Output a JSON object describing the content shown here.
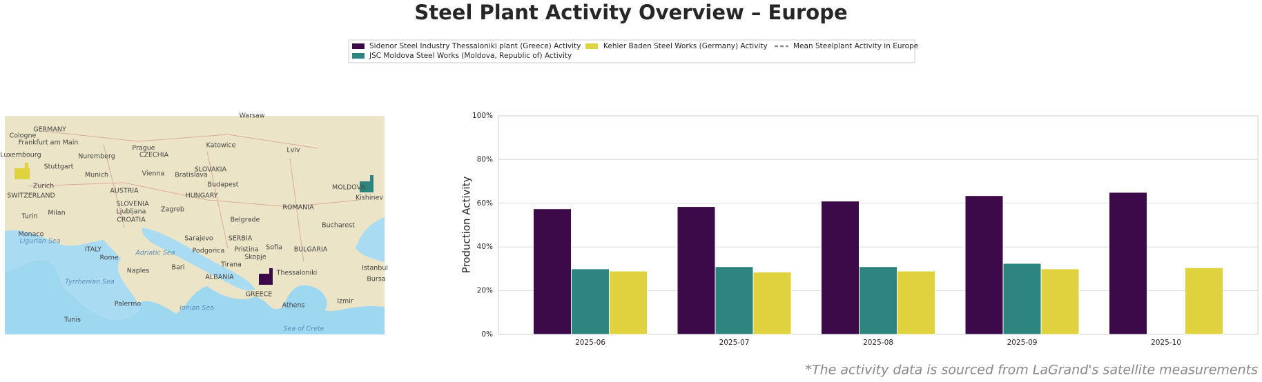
{
  "chart_data": {
    "type": "bar",
    "title": "Steel Plant Activity Overview – Europe",
    "ylabel": "Production Activity",
    "footnote": "*The activity data is sourced from LaGrand's satellite measurements",
    "categories": [
      "2025-06",
      "2025-07",
      "2025-08",
      "2025-09",
      "2025-10"
    ],
    "series": [
      {
        "name": "Sidenor Steel Industry Thessaloniki plant (Greece) Activity",
        "color": "#3c0a48",
        "values": [
          57.5,
          58.5,
          61,
          63.5,
          65
        ]
      },
      {
        "name": "JSC Moldova Steel Works (Moldova, Republic of) Activity",
        "color": "#2e8580",
        "values": [
          30,
          31,
          31,
          32.5,
          null
        ]
      },
      {
        "name": "Kehler Baden Steel Works (Germany) Activity",
        "color": "#e0d23e",
        "values": [
          29,
          28.5,
          29,
          30,
          30.5
        ]
      }
    ],
    "reference_line": {
      "name": "Mean Steelplant Activity in Europe",
      "color": "#888888"
    },
    "ylim": [
      0,
      100
    ],
    "yticks": [
      {
        "value": 0,
        "label": "0%"
      },
      {
        "value": 20,
        "label": "20%"
      },
      {
        "value": 40,
        "label": "40%"
      },
      {
        "value": 60,
        "label": "60%"
      },
      {
        "value": 80,
        "label": "80%"
      },
      {
        "value": 100,
        "label": "100%"
      }
    ],
    "grid": true,
    "map_labels": [
      "GERMANY",
      "Frankfurt am Main",
      "Cologne",
      "Luxembourg",
      "Nuremberg",
      "Stuttgart",
      "Munich",
      "Prague",
      "CZECHIA",
      "Katowice",
      "Warsaw",
      "Lviv",
      "Vienna",
      "Bratislava",
      "SLOVAKIA",
      "Budapest",
      "HUNGARY",
      "AUSTRIA",
      "Zurich",
      "SWITZERLAND",
      "Milan",
      "Turin",
      "Ljubljana",
      "Zagreb",
      "SLOVENIA",
      "CROATIA",
      "Belgrade",
      "ROMANIA",
      "Bucharest",
      "MOLDOVA",
      "Kishinev",
      "Monaco",
      "Ligurian Sea",
      "ITALY",
      "Rome",
      "Adriatic Sea",
      "Sarajevo",
      "Podgorica",
      "SERBIA",
      "Pristina",
      "Sofia",
      "BULGARIA",
      "Skopje",
      "Tirana",
      "ALBANIA",
      "Thessaloniki",
      "Bari",
      "Naples",
      "Tyrrhenian Sea",
      "GREECE",
      "Athens",
      "Izmir",
      "Palermo",
      "Ionian Sea",
      "Tunis",
      "Sea of Crete",
      "Istanbul",
      "Bursa"
    ]
  }
}
